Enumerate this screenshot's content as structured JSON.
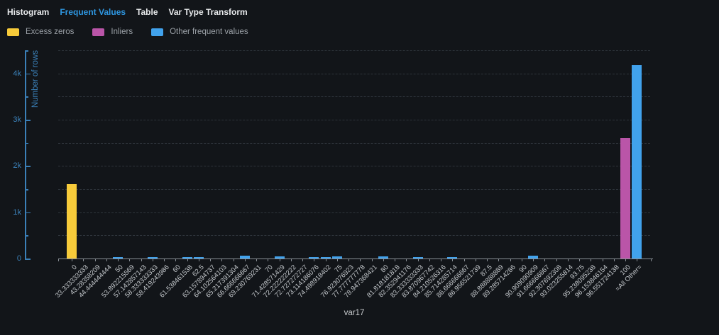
{
  "tabs": {
    "items": [
      {
        "label": "Histogram",
        "active": false
      },
      {
        "label": "Frequent Values",
        "active": true
      },
      {
        "label": "Table",
        "active": false
      },
      {
        "label": "Var Type Transform",
        "active": false
      }
    ]
  },
  "legend": {
    "items": [
      {
        "label": "Excess zeros",
        "color": "#F7CB3A",
        "key": "excess_zeros"
      },
      {
        "label": "Inliers",
        "color": "#BA55A8",
        "key": "inliers"
      },
      {
        "label": "Other frequent values",
        "color": "#41A2EC",
        "key": "other_frequent"
      }
    ]
  },
  "chart_data": {
    "type": "bar",
    "title": "",
    "xlabel": "var17",
    "ylabel": "Number of rows",
    "ylim": [
      0,
      4500
    ],
    "ytick_values": [
      0,
      1000,
      2000,
      3000,
      4000
    ],
    "ytick_labels": [
      "0",
      "1k",
      "2k",
      "3k",
      "4k"
    ],
    "minor_tick_step": 500,
    "grid": "horizontal dashed every 500",
    "legend_position": "top-left",
    "axis_color": "#3B80B8",
    "categories": [
      "0",
      "33.333333333",
      "43.28358209",
      "44.444444444",
      "50",
      "53.892215569",
      "57.142857143",
      "58.333333333",
      "58.419243986",
      "60",
      "61.538461538",
      "62.5",
      "63.157894737",
      "64.102564103",
      "65.217391304",
      "66.666666667",
      "69.230769231",
      "70",
      "71.428571429",
      "72.222222222",
      "72.727272727",
      "73.114186076",
      "74.498918402",
      "75",
      "76.923076923",
      "77.777777778",
      "78.947368421",
      "80",
      "81.818181818",
      "82.352941176",
      "83.333333333",
      "83.870967742",
      "84.210526316",
      "85.714285714",
      "86.666666667",
      "86.956521739",
      "87.5",
      "88.888888889",
      "89.285714286",
      "90",
      "90.909090909",
      "91.666666667",
      "92.307692308",
      "93.023255814",
      "93.75",
      "95.238095238",
      "96.153846154",
      "96.551724138",
      "100",
      "=All Other="
    ],
    "values": [
      1610,
      0,
      0,
      0,
      30,
      0,
      0,
      30,
      0,
      0,
      30,
      30,
      0,
      0,
      0,
      55,
      0,
      0,
      40,
      0,
      0,
      30,
      30,
      40,
      0,
      0,
      0,
      50,
      0,
      0,
      35,
      0,
      0,
      35,
      0,
      0,
      0,
      0,
      0,
      0,
      65,
      0,
      0,
      0,
      0,
      0,
      0,
      0,
      2600,
      4180
    ],
    "group_by_index": {
      "0": "excess_zeros",
      "48": "inliers"
    },
    "default_group": "other_frequent",
    "colors": {
      "excess_zeros": "#F7CB3A",
      "inliers": "#BA55A8",
      "other_frequent": "#41A2EC"
    }
  }
}
